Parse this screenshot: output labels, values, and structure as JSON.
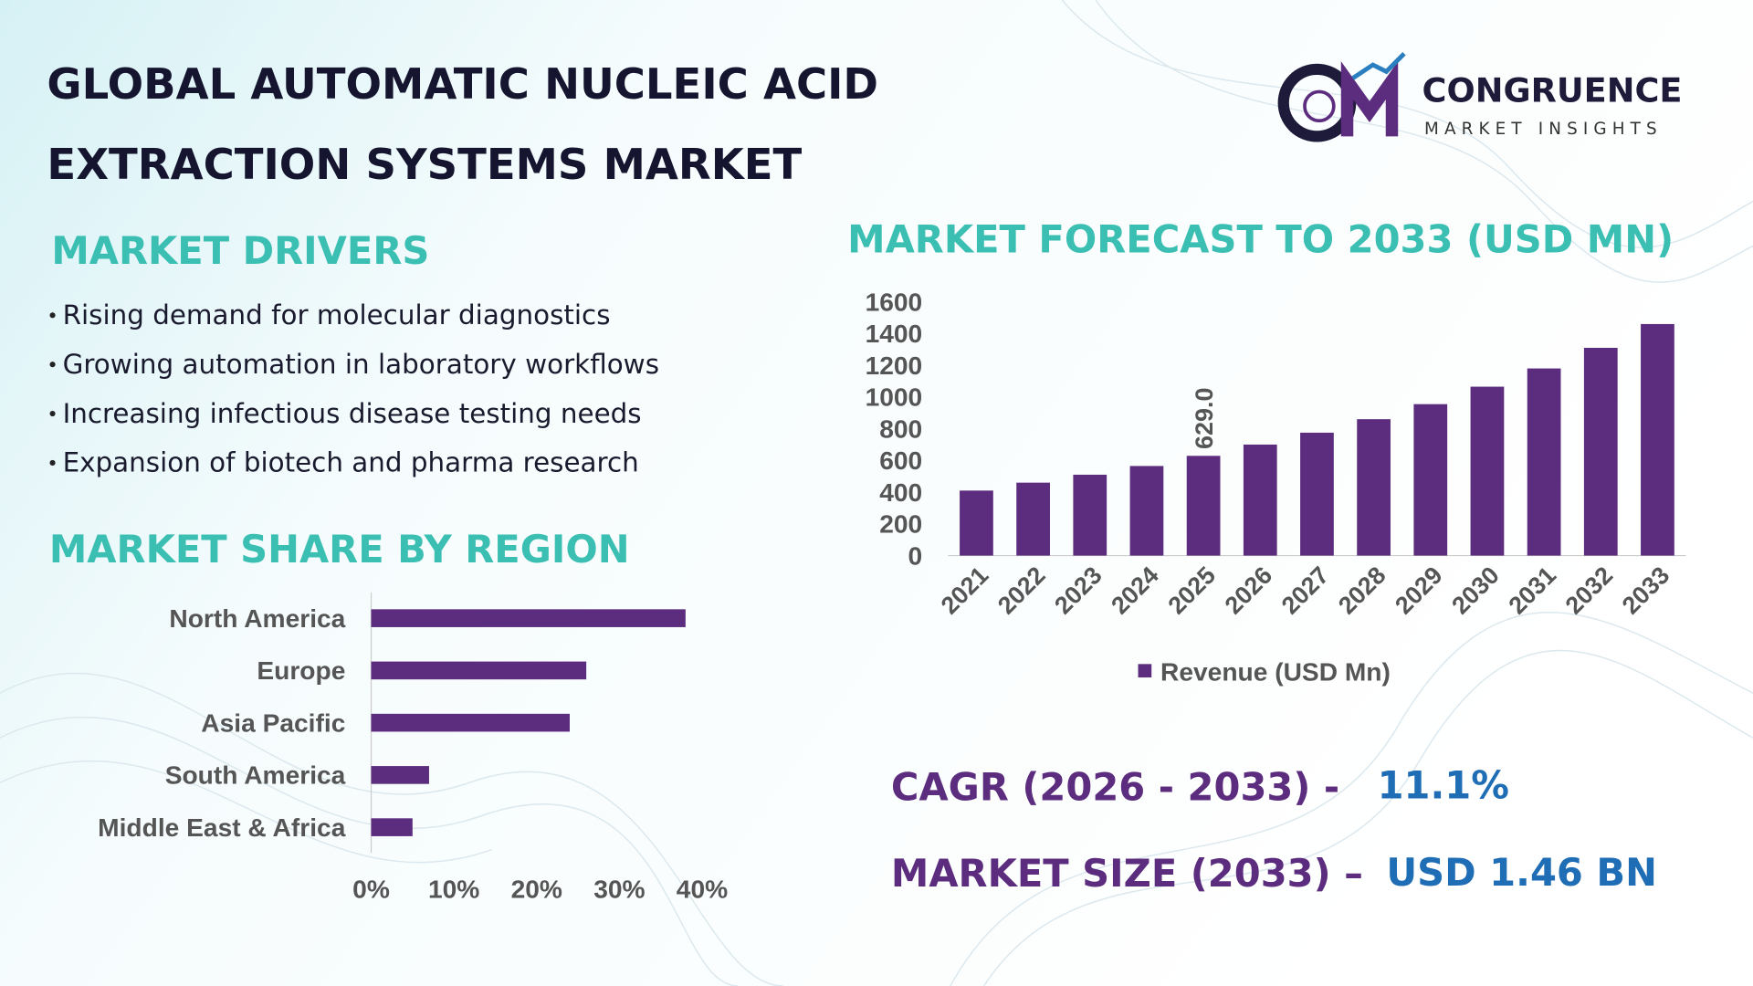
{
  "header": {
    "title_lines": [
      "GLOBAL AUTOMATIC NUCLEIC ACID",
      "EXTRACTION SYSTEMS MARKET"
    ]
  },
  "logo": {
    "name": "CONGRUENCE",
    "tagline": "MARKET INSIGHTS"
  },
  "drivers": {
    "heading": "MARKET DRIVERS",
    "items": [
      "Rising demand for molecular diagnostics",
      "Growing automation in laboratory workflows",
      "Increasing infectious disease testing needs",
      "Expansion of biotech and pharma research"
    ]
  },
  "chart_data": [
    {
      "type": "bar",
      "title": "MARKET FORECAST TO 2033 (USD MN)",
      "categories": [
        "2021",
        "2022",
        "2023",
        "2024",
        "2025",
        "2026",
        "2027",
        "2028",
        "2029",
        "2030",
        "2031",
        "2032",
        "2033"
      ],
      "series": [
        {
          "name": "Revenue (USD Mn)",
          "color": "#5c2d7e",
          "values": [
            410,
            460,
            510,
            565,
            629,
            700,
            775,
            860,
            955,
            1065,
            1180,
            1310,
            1460
          ],
          "value_labels": [
            null,
            null,
            null,
            null,
            "629.0",
            null,
            null,
            null,
            null,
            null,
            null,
            null,
            null
          ]
        }
      ],
      "ylim": [
        0,
        1600
      ],
      "yticks": [
        0,
        200,
        400,
        600,
        800,
        1000,
        1200,
        1400,
        1600
      ],
      "legend": "bottom"
    },
    {
      "type": "barh",
      "title": "MARKET SHARE BY REGION",
      "categories": [
        "North America",
        "Europe",
        "Asia Pacific",
        "South America",
        "Middle East & Africa"
      ],
      "values": [
        38,
        26,
        24,
        7,
        5
      ],
      "color": "#5c2d7e",
      "xlim": [
        0,
        40
      ],
      "xticks": [
        {
          "value": 0,
          "label": "0%"
        },
        {
          "value": 10,
          "label": "10%"
        },
        {
          "value": 20,
          "label": "20%"
        },
        {
          "value": 30,
          "label": "30%"
        },
        {
          "value": 40,
          "label": "40%"
        }
      ]
    }
  ],
  "stats": {
    "cagr": {
      "label": "CAGR (2026 - 2033) -",
      "value": "11.1%"
    },
    "size": {
      "label": "MARKET SIZE (2033) –",
      "value": "USD 1.46 BN"
    }
  }
}
